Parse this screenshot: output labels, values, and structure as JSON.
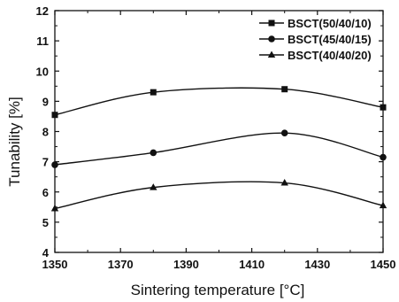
{
  "chart_data": {
    "type": "line",
    "title": "",
    "xlabel": "Sintering temperature [°C]",
    "ylabel": "Tunability [%]",
    "xlim": [
      1350,
      1450
    ],
    "ylim": [
      4,
      12
    ],
    "x_ticks": [
      "1350",
      "1370",
      "1390",
      "1410",
      "1430",
      "1450"
    ],
    "y_ticks": [
      "4",
      "5",
      "6",
      "7",
      "8",
      "9",
      "10",
      "11",
      "12"
    ],
    "grid": false,
    "legend_position": "top-right",
    "series": [
      {
        "name": "BSCT(50/40/10)",
        "marker": "square",
        "x": [
          1350,
          1380,
          1420,
          1450
        ],
        "y": [
          8.55,
          9.3,
          9.4,
          8.8
        ]
      },
      {
        "name": "BSCT(45/40/15)",
        "marker": "circle",
        "x": [
          1350,
          1380,
          1420,
          1450
        ],
        "y": [
          6.9,
          7.3,
          7.95,
          7.15
        ]
      },
      {
        "name": "BSCT(40/40/20)",
        "marker": "triangle",
        "x": [
          1350,
          1380,
          1420,
          1450
        ],
        "y": [
          5.45,
          6.15,
          6.3,
          5.55
        ]
      }
    ]
  }
}
